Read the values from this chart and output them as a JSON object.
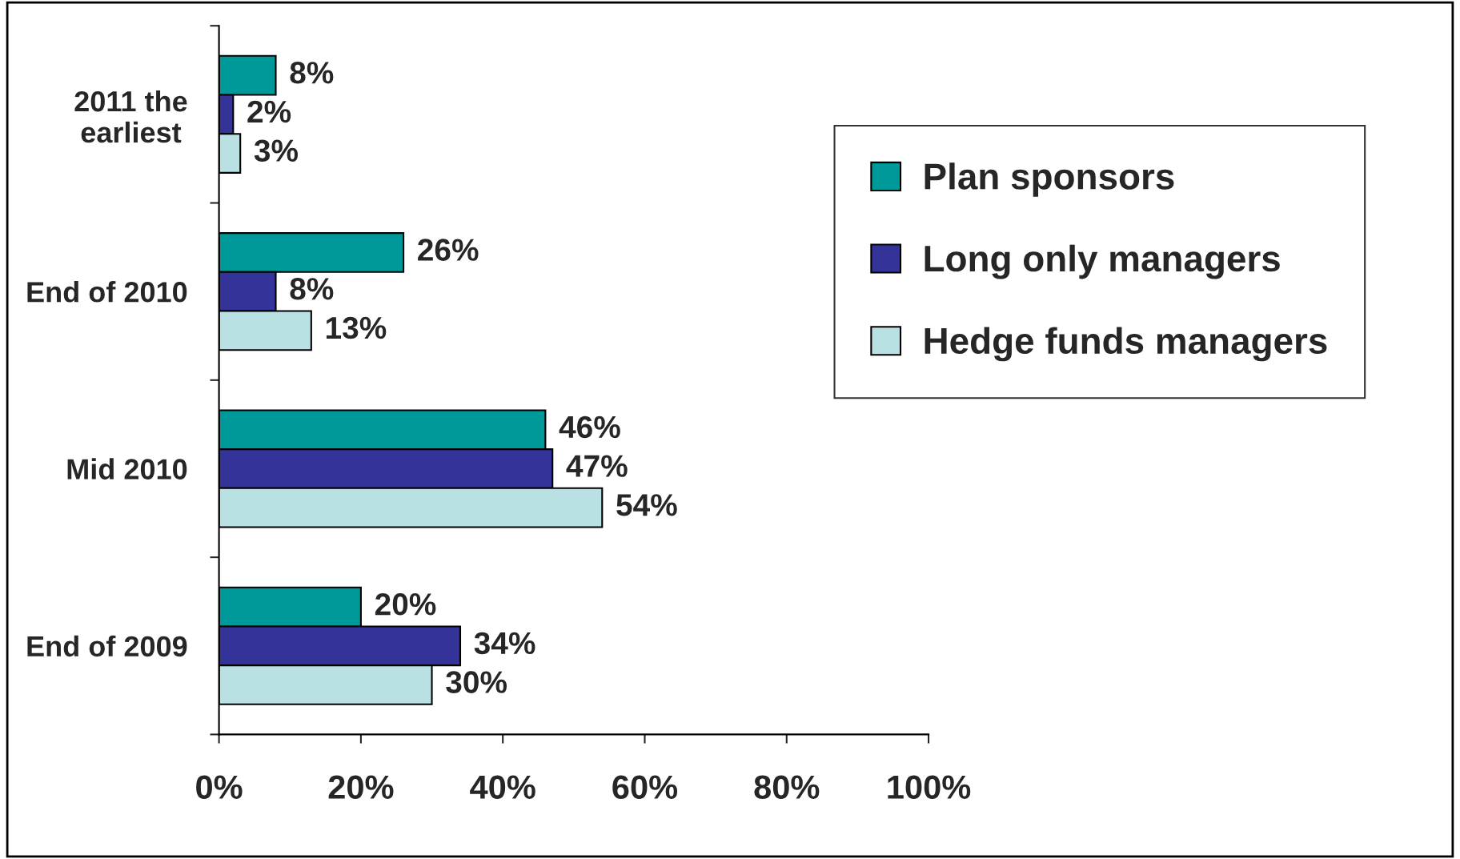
{
  "chart_data": {
    "type": "bar",
    "orientation": "horizontal",
    "categories": [
      "2011 the earliest",
      "End of 2010",
      "Mid 2010",
      "End of 2009"
    ],
    "series": [
      {
        "name": "Plan sponsors",
        "color": "#009999",
        "values": [
          8,
          26,
          46,
          20
        ],
        "value_labels": [
          "8%",
          "26%",
          "46%",
          "20%"
        ]
      },
      {
        "name": "Long only managers",
        "color": "#333399",
        "values": [
          2,
          8,
          47,
          34
        ],
        "value_labels": [
          "2%",
          "8%",
          "47%",
          "34%"
        ]
      },
      {
        "name": "Hedge funds managers",
        "color": "#b9e1e4",
        "values": [
          3,
          13,
          54,
          30
        ],
        "value_labels": [
          "3%",
          "13%",
          "54%",
          "30%"
        ]
      }
    ],
    "xlim": [
      0,
      100
    ],
    "xticks": [
      {
        "value": 0,
        "label": "0%"
      },
      {
        "value": 20,
        "label": "20%"
      },
      {
        "value": 40,
        "label": "40%"
      },
      {
        "value": 60,
        "label": "60%"
      },
      {
        "value": 80,
        "label": "80%"
      },
      {
        "value": 100,
        "label": "100%"
      }
    ],
    "grid": false,
    "legend": "right"
  }
}
